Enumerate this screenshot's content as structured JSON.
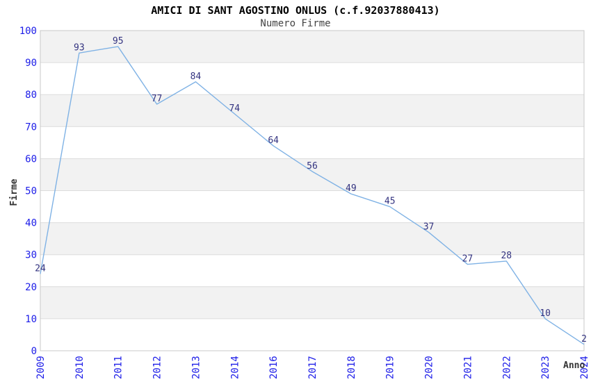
{
  "header": {
    "title": "AMICI DI SANT AGOSTINO ONLUS (c.f.92037880413)",
    "subtitle": "Numero Firme"
  },
  "chart_data": {
    "type": "line",
    "title": "AMICI DI SANT AGOSTINO ONLUS (c.f.92037880413)",
    "subtitle": "Numero Firme",
    "xlabel": "Anno",
    "ylabel": "Firme",
    "categories": [
      "2009",
      "2010",
      "2011",
      "2012",
      "2013",
      "2014",
      "2016",
      "2017",
      "2018",
      "2019",
      "2020",
      "2021",
      "2022",
      "2023",
      "2024"
    ],
    "values": [
      24,
      93,
      95,
      77,
      84,
      74,
      64,
      56,
      49,
      45,
      37,
      27,
      28,
      10,
      2
    ],
    "ylim": [
      0,
      100
    ],
    "ytick_step": 10,
    "yticks": [
      0,
      10,
      20,
      30,
      40,
      50,
      60,
      70,
      80,
      90,
      100
    ],
    "grid": "horizontal",
    "banded_background": true,
    "legend": "none",
    "data_labels_shown": true,
    "colors": {
      "line": "#7fb2e5",
      "data_label": "#333380",
      "tick_label": "#1c1ce8",
      "axis_title": "#333333",
      "title": "#000000",
      "subtitle": "#444444",
      "band": "#f2f2f2",
      "gridline": "#dcdcdc",
      "plot_border": "#c8c8c8",
      "background": "#ffffff"
    }
  }
}
